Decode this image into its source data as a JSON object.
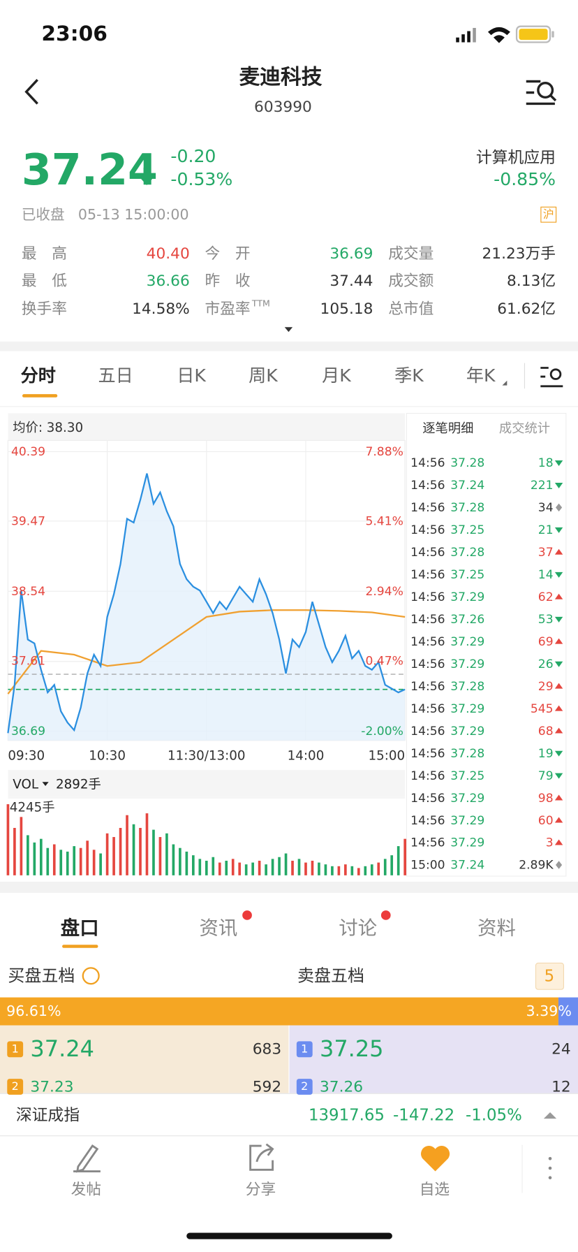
{
  "status_bar": {
    "time": "23:06"
  },
  "header": {
    "title": "麦迪科技",
    "code": "603990"
  },
  "colors": {
    "up": "#e5463f",
    "down": "#23a866",
    "flat": "#333333"
  },
  "quote": {
    "price": "37.24",
    "change": "-0.20",
    "change_pct": "-0.53%",
    "sector": "计算机应用",
    "sector_change": "-0.85%",
    "state": "已收盘",
    "datetime": "05-13 15:00:00",
    "market": "沪"
  },
  "stats": [
    {
      "label": "最　高",
      "value": "40.40",
      "tone": "up"
    },
    {
      "label": "今　开",
      "value": "36.69",
      "tone": "down"
    },
    {
      "label": "成交量",
      "value": "21.23万手",
      "tone": "flat"
    },
    {
      "label": "最　低",
      "value": "36.66",
      "tone": "down"
    },
    {
      "label": "昨　收",
      "value": "37.44",
      "tone": "flat"
    },
    {
      "label": "成交额",
      "value": "8.13亿",
      "tone": "flat"
    },
    {
      "label": "换手率",
      "value": "14.58%",
      "tone": "flat"
    },
    {
      "label": "市盈率",
      "sup": "TTM",
      "value": "105.18",
      "tone": "flat"
    },
    {
      "label": "总市值",
      "value": "61.62亿",
      "tone": "flat"
    }
  ],
  "tabs": [
    "分时",
    "五日",
    "日K",
    "周K",
    "月K",
    "季K",
    "年K"
  ],
  "intraday": {
    "avg_label": "均价: 38.30",
    "ylim": [
      36.69,
      40.39
    ],
    "yticks": [
      40.39,
      39.47,
      38.54,
      37.61,
      36.69
    ],
    "pct_ticks": [
      "7.88%",
      "5.41%",
      "2.94%",
      "0.47%",
      "-2.00%"
    ],
    "xticks": [
      "09:30",
      "10:30",
      "11:30/13:00",
      "14:00",
      "15:00"
    ],
    "price": [
      36.66,
      37.3,
      38.55,
      37.9,
      37.85,
      37.5,
      37.2,
      37.3,
      36.95,
      36.8,
      36.7,
      37.0,
      37.45,
      37.7,
      37.55,
      38.2,
      38.5,
      38.9,
      39.5,
      39.45,
      39.75,
      40.1,
      39.7,
      39.85,
      39.6,
      39.4,
      38.9,
      38.7,
      38.6,
      38.55,
      38.4,
      38.25,
      38.4,
      38.3,
      38.45,
      38.6,
      38.5,
      38.4,
      38.7,
      38.5,
      38.25,
      37.9,
      37.45,
      37.9,
      37.8,
      38.0,
      38.4,
      38.1,
      37.8,
      37.6,
      37.75,
      37.95,
      37.65,
      37.75,
      37.55,
      37.5,
      37.6,
      37.3,
      37.25,
      37.2,
      37.24
    ],
    "avg": [
      37.18,
      37.75,
      37.7,
      37.55,
      37.6,
      37.9,
      38.2,
      38.27,
      38.29,
      38.29,
      38.28,
      38.26,
      38.2
    ]
  },
  "volume": {
    "title": "VOL",
    "current": "2892手",
    "max": {
      "value": 4245,
      "label": "4245手"
    },
    "values": [
      3900,
      2600,
      3200,
      2200,
      1800,
      2000,
      1500,
      1700,
      1400,
      1300,
      1600,
      1500,
      1900,
      1400,
      1200,
      2300,
      2100,
      2600,
      3300,
      2800,
      2600,
      3400,
      2500,
      2100,
      2300,
      1700,
      1500,
      1300,
      1100,
      900,
      800,
      1000,
      700,
      800,
      900,
      700,
      600,
      700,
      800,
      600,
      900,
      1000,
      1200,
      800,
      900,
      700,
      800,
      700,
      600,
      500,
      500,
      600,
      500,
      400,
      500,
      600,
      700,
      900,
      1100,
      1600,
      2000
    ]
  },
  "trades": {
    "tabs": [
      "逐笔明细",
      "成交统计"
    ],
    "rows": [
      {
        "time": "14:56",
        "price": "37.28",
        "volume": "18",
        "tone": "down"
      },
      {
        "time": "14:56",
        "price": "37.24",
        "volume": "221",
        "tone": "down"
      },
      {
        "time": "14:56",
        "price": "37.28",
        "volume": "34",
        "tone": "flat"
      },
      {
        "time": "14:56",
        "price": "37.25",
        "volume": "21",
        "tone": "down"
      },
      {
        "time": "14:56",
        "price": "37.28",
        "volume": "37",
        "tone": "up"
      },
      {
        "time": "14:56",
        "price": "37.25",
        "volume": "14",
        "tone": "down"
      },
      {
        "time": "14:56",
        "price": "37.29",
        "volume": "62",
        "tone": "up"
      },
      {
        "time": "14:56",
        "price": "37.26",
        "volume": "53",
        "tone": "down"
      },
      {
        "time": "14:56",
        "price": "37.29",
        "volume": "69",
        "tone": "up"
      },
      {
        "time": "14:56",
        "price": "37.29",
        "volume": "26",
        "tone": "down"
      },
      {
        "time": "14:56",
        "price": "37.28",
        "volume": "29",
        "tone": "up"
      },
      {
        "time": "14:56",
        "price": "37.29",
        "volume": "545",
        "tone": "up"
      },
      {
        "time": "14:56",
        "price": "37.29",
        "volume": "68",
        "tone": "up"
      },
      {
        "time": "14:56",
        "price": "37.28",
        "volume": "19",
        "tone": "down"
      },
      {
        "time": "14:56",
        "price": "37.25",
        "volume": "79",
        "tone": "down"
      },
      {
        "time": "14:56",
        "price": "37.29",
        "volume": "98",
        "tone": "up"
      },
      {
        "time": "14:56",
        "price": "37.29",
        "volume": "60",
        "tone": "up"
      },
      {
        "time": "14:56",
        "price": "37.29",
        "volume": "3",
        "tone": "up"
      },
      {
        "time": "15:00",
        "price": "37.24",
        "volume": "2.89K",
        "tone": "flat"
      }
    ]
  },
  "panel_tabs": [
    "盘口",
    "资讯",
    "讨论",
    "资料"
  ],
  "order_book": {
    "buy_title": "买盘五档",
    "sell_title": "卖盘五档",
    "levels": "5",
    "buy_ratio": {
      "value": 96.61,
      "label": "96.61%"
    },
    "sell_ratio": {
      "value": 3.39,
      "label": "3.39%"
    },
    "bids": [
      {
        "level": "1",
        "price": "37.24",
        "volume": "683"
      },
      {
        "level": "2",
        "price": "37.23",
        "volume": "592"
      }
    ],
    "asks": [
      {
        "level": "1",
        "price": "37.25",
        "volume": "24"
      },
      {
        "level": "2",
        "price": "37.26",
        "volume": "12"
      }
    ]
  },
  "index_bar": {
    "name": "深证成指",
    "value": "13917.65",
    "change": "-147.22",
    "change_pct": "-1.05%"
  },
  "nav": [
    "发帖",
    "分享",
    "自选"
  ]
}
